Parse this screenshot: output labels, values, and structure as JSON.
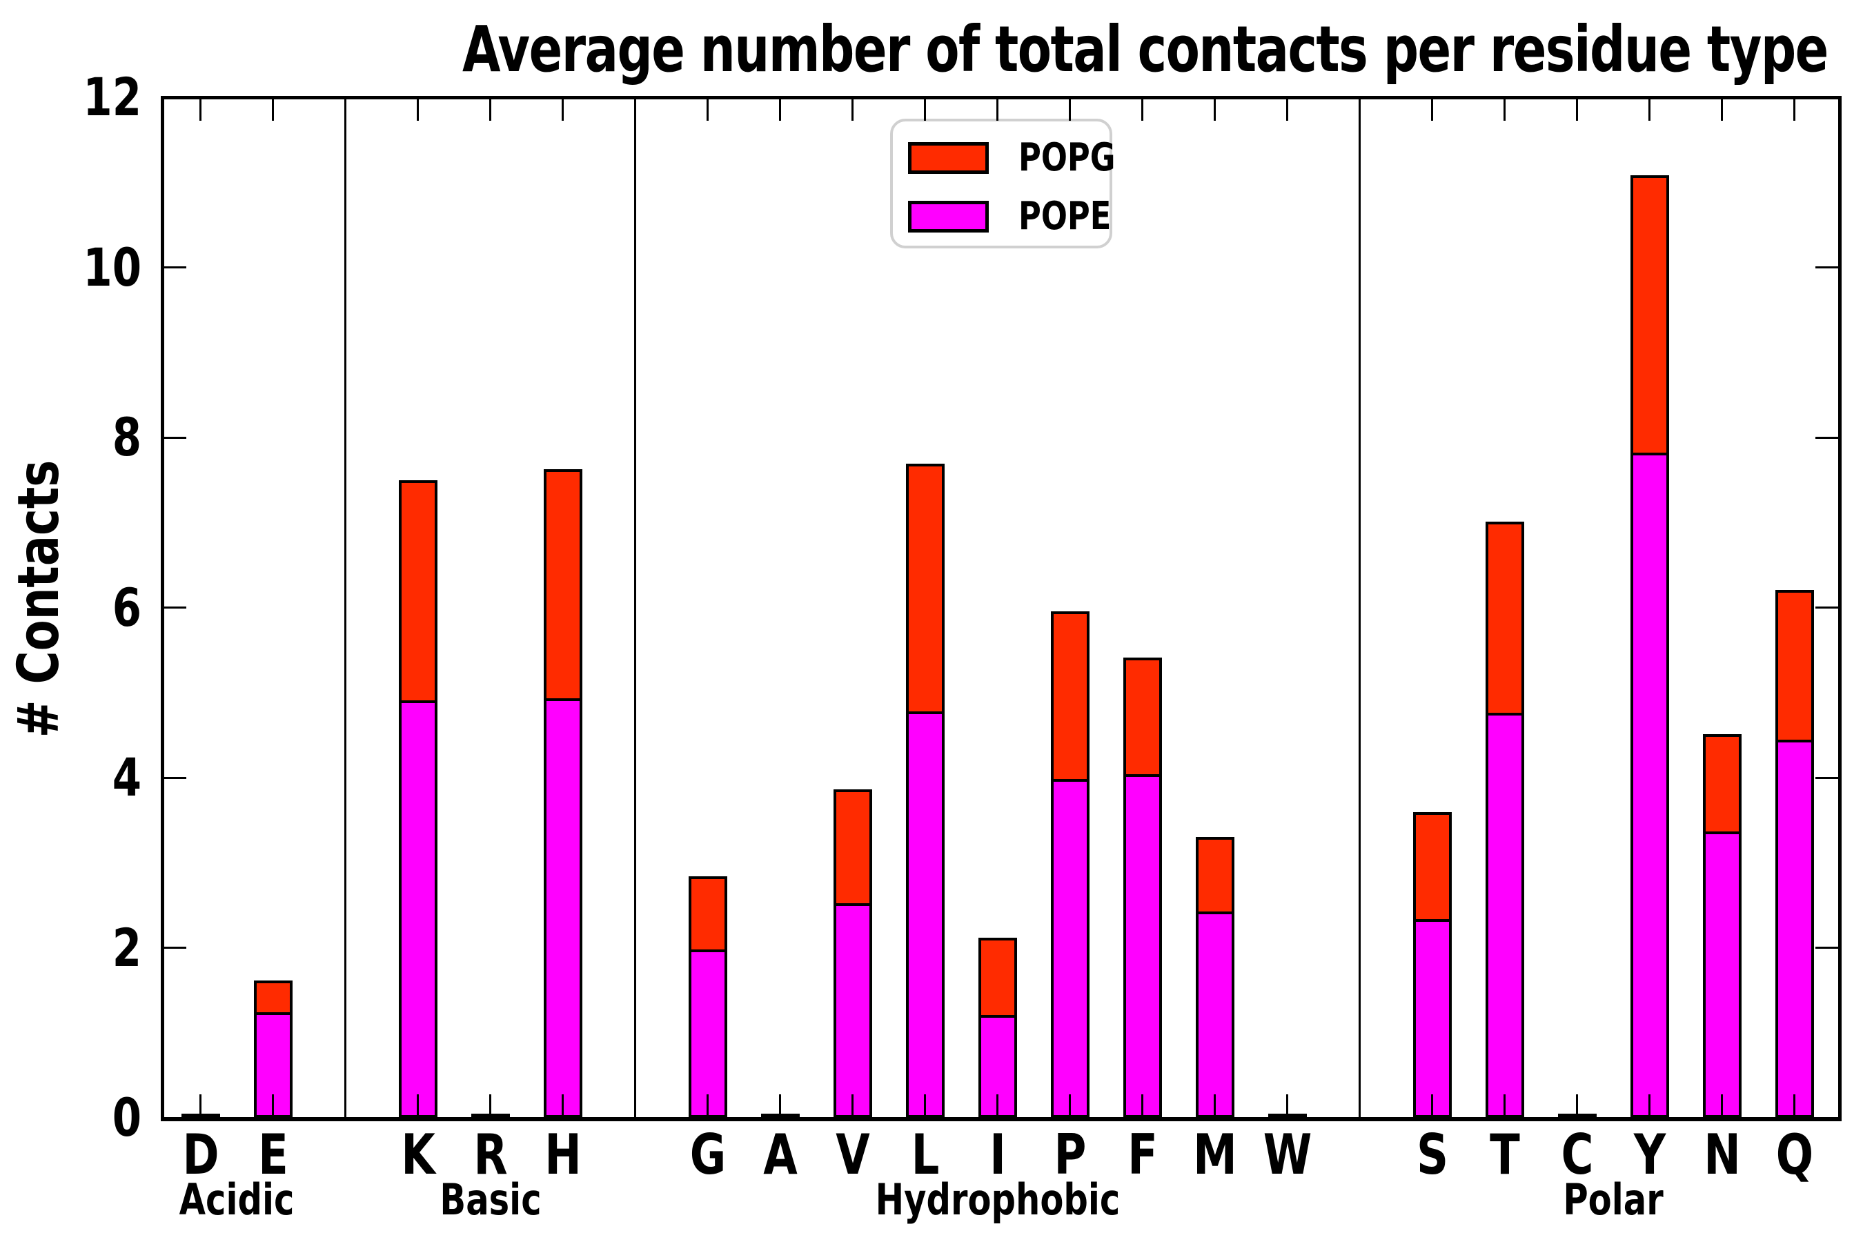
{
  "title": "Average number of total contacts per residue type",
  "legend": [
    {
      "label": "POPG",
      "color": "#ff2b00"
    },
    {
      "label": "POPE",
      "color": "#ff00ff"
    }
  ],
  "colors": {
    "popg": "#ff2b00",
    "pope": "#ff00ff",
    "outline": "#000000",
    "legend_border": "#d0d0d0",
    "background": "#ffffff"
  },
  "chart_data": {
    "type": "bar",
    "stacked": true,
    "title": "Average number of total contacts per residue type",
    "xlabel": "",
    "ylabel": "# Contacts",
    "ylim": [
      0,
      12
    ],
    "yticks": [
      0,
      2,
      4,
      6,
      8,
      10,
      12
    ],
    "grid": false,
    "legend_position": "top-center",
    "categories": [
      "D",
      "E",
      "K",
      "R",
      "H",
      "G",
      "A",
      "V",
      "L",
      "I",
      "P",
      "F",
      "M",
      "W",
      "S",
      "T",
      "C",
      "Y",
      "N",
      "Q"
    ],
    "groups": [
      {
        "label": "Acidic",
        "categories": [
          "D",
          "E"
        ]
      },
      {
        "label": "Basic",
        "categories": [
          "K",
          "R",
          "H"
        ]
      },
      {
        "label": "Hydrophobic",
        "categories": [
          "G",
          "A",
          "V",
          "L",
          "I",
          "P",
          "F",
          "M",
          "W"
        ]
      },
      {
        "label": "Polar",
        "categories": [
          "S",
          "T",
          "C",
          "Y",
          "N",
          "Q"
        ]
      }
    ],
    "stack_order": [
      "POPE",
      "POPG"
    ],
    "series": [
      {
        "name": "POPG",
        "color": "#ff2b00",
        "values": {
          "D": 0.01,
          "E": 0.37,
          "K": 2.59,
          "R": 0.01,
          "H": 2.69,
          "G": 0.86,
          "A": 0.01,
          "V": 1.34,
          "L": 2.91,
          "I": 0.91,
          "P": 1.97,
          "F": 1.37,
          "M": 0.88,
          "W": 0.01,
          "S": 1.26,
          "T": 2.25,
          "C": 0.01,
          "Y": 3.26,
          "N": 1.14,
          "Q": 1.76
        }
      },
      {
        "name": "POPE",
        "color": "#ff00ff",
        "values": {
          "D": 0.02,
          "E": 1.24,
          "K": 4.91,
          "R": 0.02,
          "H": 4.93,
          "G": 1.98,
          "A": 0.02,
          "V": 2.52,
          "L": 4.78,
          "I": 1.21,
          "P": 3.98,
          "F": 4.04,
          "M": 2.43,
          "W": 0.02,
          "S": 2.34,
          "T": 4.76,
          "C": 0.02,
          "Y": 7.82,
          "N": 3.37,
          "Q": 4.45
        }
      }
    ],
    "totals": {
      "D": 0.03,
      "E": 1.61,
      "K": 7.5,
      "R": 0.03,
      "H": 7.62,
      "G": 2.84,
      "A": 0.03,
      "V": 3.86,
      "L": 7.69,
      "I": 2.12,
      "P": 5.95,
      "F": 5.41,
      "M": 3.31,
      "W": 0.03,
      "S": 3.6,
      "T": 7.01,
      "C": 0.03,
      "Y": 11.08,
      "N": 4.51,
      "Q": 6.21
    }
  }
}
